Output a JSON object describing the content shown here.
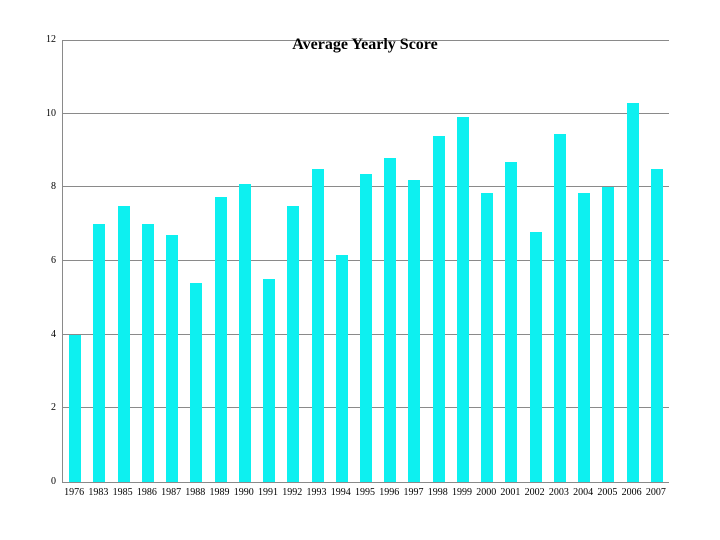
{
  "chart_data": {
    "type": "bar",
    "title": "Average Yearly Score",
    "categories": [
      "1976",
      "1983",
      "1985",
      "1986",
      "1987",
      "1988",
      "1989",
      "1990",
      "1991",
      "1992",
      "1993",
      "1994",
      "1995",
      "1996",
      "1997",
      "1998",
      "1999",
      "2000",
      "2001",
      "2002",
      "2003",
      "2004",
      "2005",
      "2006",
      "2007"
    ],
    "values": [
      4.0,
      7.0,
      7.5,
      7.0,
      6.7,
      5.4,
      7.75,
      8.1,
      5.5,
      7.5,
      8.5,
      6.15,
      8.35,
      8.8,
      8.2,
      9.4,
      9.9,
      7.85,
      8.7,
      6.8,
      9.45,
      7.85,
      8.0,
      10.3,
      8.5
    ],
    "xlabel": "",
    "ylabel": "",
    "ylim": [
      0,
      12
    ],
    "yticks": [
      0,
      2,
      4,
      6,
      8,
      10,
      12
    ],
    "grid": "horizontal",
    "legend": "none",
    "bar_color": "#0df0f0",
    "grid_color": "#8a8a8a",
    "axis_color": "#8a8a8a",
    "text_color": "#000000",
    "background_color": "#ffffff"
  }
}
